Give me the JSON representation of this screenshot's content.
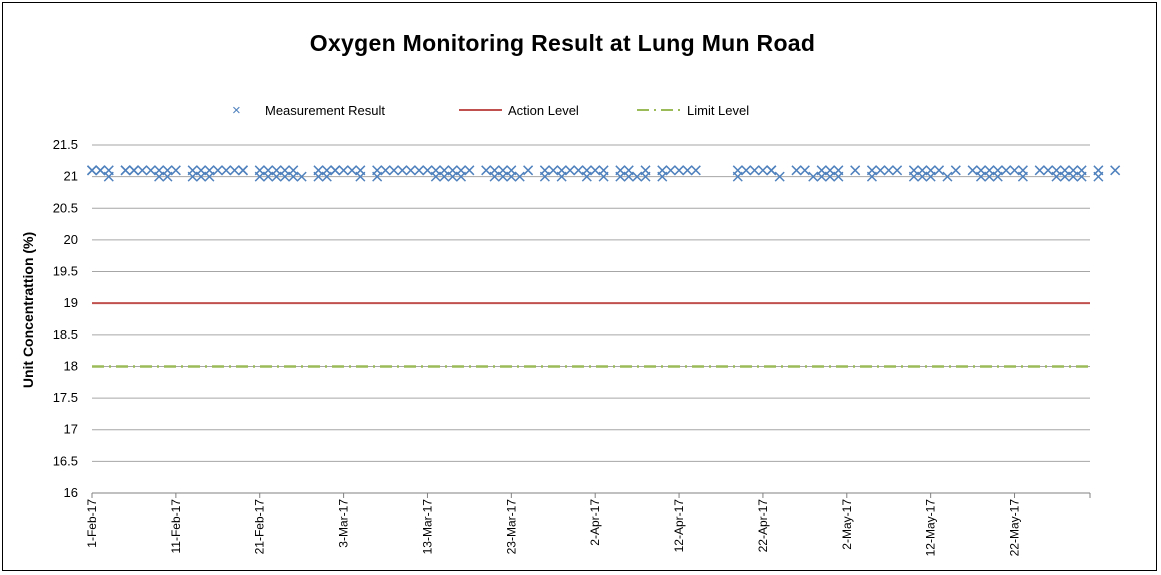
{
  "chart_data": {
    "type": "scatter",
    "title": "Oxygen Monitoring Result at Lung Mun Road",
    "xlabel": "",
    "ylabel": "Unit Concentrattion (%)",
    "ylim": [
      16,
      21.5
    ],
    "yticks": [
      "16",
      "16.5",
      "17",
      "17.5",
      "18",
      "18.5",
      "19",
      "19.5",
      "20",
      "20.5",
      "21",
      "21.5"
    ],
    "x_start": "2017-02-01",
    "x_end": "2017-05-31",
    "xtick_labels": [
      "1-Feb-17",
      "11-Feb-17",
      "21-Feb-17",
      "3-Mar-17",
      "13-Mar-17",
      "23-Mar-17",
      "2-Apr-17",
      "12-Apr-17",
      "22-Apr-17",
      "2-May-17",
      "12-May-17",
      "22-May-17"
    ],
    "grid": true,
    "legend_position": "top",
    "series": [
      {
        "name": "Measurement Result",
        "marker": "x",
        "color": "#4f81bd",
        "points": [
          [
            "2017-02-01",
            21.1
          ],
          [
            "2017-02-01",
            21.1
          ],
          [
            "2017-02-02",
            21.1
          ],
          [
            "2017-02-02",
            21.1
          ],
          [
            "2017-02-03",
            21.1
          ],
          [
            "2017-02-03",
            21.0
          ],
          [
            "2017-02-05",
            21.1
          ],
          [
            "2017-02-05",
            21.1
          ],
          [
            "2017-02-06",
            21.1
          ],
          [
            "2017-02-06",
            21.1
          ],
          [
            "2017-02-07",
            21.1
          ],
          [
            "2017-02-08",
            21.1
          ],
          [
            "2017-02-09",
            21.0
          ],
          [
            "2017-02-09",
            21.1
          ],
          [
            "2017-02-10",
            21.1
          ],
          [
            "2017-02-10",
            21.0
          ],
          [
            "2017-02-11",
            21.1
          ],
          [
            "2017-02-13",
            21.1
          ],
          [
            "2017-02-13",
            21.0
          ],
          [
            "2017-02-14",
            21.1
          ],
          [
            "2017-02-14",
            21.0
          ],
          [
            "2017-02-15",
            21.1
          ],
          [
            "2017-02-15",
            21.0
          ],
          [
            "2017-02-16",
            21.1
          ],
          [
            "2017-02-17",
            21.1
          ],
          [
            "2017-02-18",
            21.1
          ],
          [
            "2017-02-19",
            21.1
          ],
          [
            "2017-02-19",
            21.1
          ],
          [
            "2017-02-21",
            21.1
          ],
          [
            "2017-02-21",
            21.0
          ],
          [
            "2017-02-22",
            21.1
          ],
          [
            "2017-02-22",
            21.0
          ],
          [
            "2017-02-23",
            21.1
          ],
          [
            "2017-02-23",
            21.0
          ],
          [
            "2017-02-24",
            21.1
          ],
          [
            "2017-02-24",
            21.0
          ],
          [
            "2017-02-25",
            21.1
          ],
          [
            "2017-02-25",
            21.0
          ],
          [
            "2017-02-26",
            21.0
          ],
          [
            "2017-02-28",
            21.1
          ],
          [
            "2017-02-28",
            21.0
          ],
          [
            "2017-03-01",
            21.1
          ],
          [
            "2017-03-01",
            21.0
          ],
          [
            "2017-03-02",
            21.1
          ],
          [
            "2017-03-02",
            21.1
          ],
          [
            "2017-03-03",
            21.1
          ],
          [
            "2017-03-04",
            21.1
          ],
          [
            "2017-03-05",
            21.1
          ],
          [
            "2017-03-05",
            21.0
          ],
          [
            "2017-03-07",
            21.1
          ],
          [
            "2017-03-07",
            21.0
          ],
          [
            "2017-03-08",
            21.1
          ],
          [
            "2017-03-09",
            21.1
          ],
          [
            "2017-03-10",
            21.1
          ],
          [
            "2017-03-11",
            21.1
          ],
          [
            "2017-03-12",
            21.1
          ],
          [
            "2017-03-13",
            21.1
          ],
          [
            "2017-03-14",
            21.1
          ],
          [
            "2017-03-14",
            21.0
          ],
          [
            "2017-03-15",
            21.1
          ],
          [
            "2017-03-15",
            21.0
          ],
          [
            "2017-03-16",
            21.1
          ],
          [
            "2017-03-16",
            21.0
          ],
          [
            "2017-03-17",
            21.1
          ],
          [
            "2017-03-17",
            21.0
          ],
          [
            "2017-03-18",
            21.1
          ],
          [
            "2017-03-20",
            21.1
          ],
          [
            "2017-03-21",
            21.1
          ],
          [
            "2017-03-21",
            21.0
          ],
          [
            "2017-03-22",
            21.1
          ],
          [
            "2017-03-22",
            21.0
          ],
          [
            "2017-03-23",
            21.1
          ],
          [
            "2017-03-23",
            21.0
          ],
          [
            "2017-03-24",
            21.0
          ],
          [
            "2017-03-25",
            21.1
          ],
          [
            "2017-03-27",
            21.1
          ],
          [
            "2017-03-27",
            21.0
          ],
          [
            "2017-03-28",
            21.1
          ],
          [
            "2017-03-29",
            21.1
          ],
          [
            "2017-03-29",
            21.0
          ],
          [
            "2017-03-30",
            21.1
          ],
          [
            "2017-03-31",
            21.1
          ],
          [
            "2017-04-01",
            21.1
          ],
          [
            "2017-04-01",
            21.0
          ],
          [
            "2017-04-02",
            21.1
          ],
          [
            "2017-04-03",
            21.1
          ],
          [
            "2017-04-03",
            21.0
          ],
          [
            "2017-04-05",
            21.1
          ],
          [
            "2017-04-05",
            21.0
          ],
          [
            "2017-04-06",
            21.1
          ],
          [
            "2017-04-06",
            21.0
          ],
          [
            "2017-04-07",
            21.0
          ],
          [
            "2017-04-08",
            21.1
          ],
          [
            "2017-04-08",
            21.0
          ],
          [
            "2017-04-10",
            21.1
          ],
          [
            "2017-04-10",
            21.0
          ],
          [
            "2017-04-11",
            21.1
          ],
          [
            "2017-04-12",
            21.1
          ],
          [
            "2017-04-13",
            21.1
          ],
          [
            "2017-04-14",
            21.1
          ],
          [
            "2017-04-19",
            21.1
          ],
          [
            "2017-04-19",
            21.0
          ],
          [
            "2017-04-20",
            21.1
          ],
          [
            "2017-04-21",
            21.1
          ],
          [
            "2017-04-22",
            21.1
          ],
          [
            "2017-04-23",
            21.1
          ],
          [
            "2017-04-23",
            21.1
          ],
          [
            "2017-04-24",
            21.0
          ],
          [
            "2017-04-26",
            21.1
          ],
          [
            "2017-04-27",
            21.1
          ],
          [
            "2017-04-28",
            21.0
          ],
          [
            "2017-04-29",
            21.1
          ],
          [
            "2017-04-29",
            21.0
          ],
          [
            "2017-04-30",
            21.1
          ],
          [
            "2017-04-30",
            21.0
          ],
          [
            "2017-05-01",
            21.1
          ],
          [
            "2017-05-01",
            21.0
          ],
          [
            "2017-05-03",
            21.1
          ],
          [
            "2017-05-05",
            21.1
          ],
          [
            "2017-05-05",
            21.0
          ],
          [
            "2017-05-06",
            21.1
          ],
          [
            "2017-05-07",
            21.1
          ],
          [
            "2017-05-08",
            21.1
          ],
          [
            "2017-05-10",
            21.1
          ],
          [
            "2017-05-10",
            21.0
          ],
          [
            "2017-05-11",
            21.1
          ],
          [
            "2017-05-11",
            21.0
          ],
          [
            "2017-05-12",
            21.1
          ],
          [
            "2017-05-12",
            21.0
          ],
          [
            "2017-05-13",
            21.1
          ],
          [
            "2017-05-14",
            21.0
          ],
          [
            "2017-05-15",
            21.1
          ],
          [
            "2017-05-17",
            21.1
          ],
          [
            "2017-05-18",
            21.1
          ],
          [
            "2017-05-18",
            21.0
          ],
          [
            "2017-05-19",
            21.1
          ],
          [
            "2017-05-19",
            21.0
          ],
          [
            "2017-05-20",
            21.1
          ],
          [
            "2017-05-20",
            21.0
          ],
          [
            "2017-05-21",
            21.1
          ],
          [
            "2017-05-22",
            21.1
          ],
          [
            "2017-05-23",
            21.1
          ],
          [
            "2017-05-23",
            21.0
          ],
          [
            "2017-05-25",
            21.1
          ],
          [
            "2017-05-26",
            21.1
          ],
          [
            "2017-05-27",
            21.1
          ],
          [
            "2017-05-27",
            21.0
          ],
          [
            "2017-05-28",
            21.1
          ],
          [
            "2017-05-28",
            21.0
          ],
          [
            "2017-05-29",
            21.1
          ],
          [
            "2017-05-29",
            21.0
          ],
          [
            "2017-05-30",
            21.1
          ],
          [
            "2017-05-30",
            21.0
          ],
          [
            "2017-06-01",
            21.1
          ],
          [
            "2017-06-01",
            21.0
          ],
          [
            "2017-06-03",
            21.1
          ]
        ]
      },
      {
        "name": "Action Level",
        "type": "line",
        "color": "#c0504d",
        "value": 19
      },
      {
        "name": "Limit Level",
        "type": "line",
        "color": "#9bbb59",
        "dash": "dash-dot",
        "value": 18
      }
    ]
  }
}
